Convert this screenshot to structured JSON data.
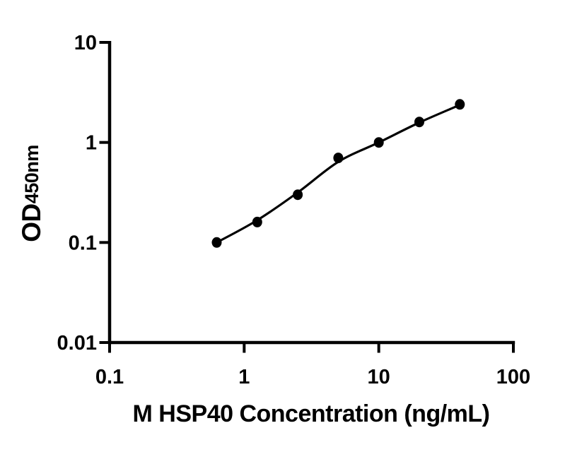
{
  "figure": {
    "background": "#ffffff",
    "ink_color": "#000000"
  },
  "chart_data": {
    "type": "scatter",
    "title": "",
    "xlabel": "M HSP40 Concentration (ng/mL)",
    "ylabel_main": "OD",
    "ylabel_sub": "450nm",
    "x_scale": "log",
    "y_scale": "log",
    "xlim": [
      0.1,
      100
    ],
    "ylim": [
      0.01,
      10
    ],
    "x_ticks": [
      0.1,
      1,
      10,
      100
    ],
    "y_ticks": [
      0.01,
      0.1,
      1,
      10
    ],
    "grid": false,
    "legend": null,
    "marker": {
      "shape": "circle",
      "color": "#000000",
      "rx": 7,
      "ry": 7.5
    },
    "points": [
      {
        "x": 0.625,
        "y": 0.1
      },
      {
        "x": 1.25,
        "y": 0.16
      },
      {
        "x": 2.5,
        "y": 0.3
      },
      {
        "x": 5,
        "y": 0.7
      },
      {
        "x": 10,
        "y": 1.0
      },
      {
        "x": 20,
        "y": 1.6
      },
      {
        "x": 40,
        "y": 2.4
      }
    ],
    "fit_curve": [
      {
        "x": 0.625,
        "y": 0.1
      },
      {
        "x": 1.25,
        "y": 0.167
      },
      {
        "x": 2.5,
        "y": 0.316
      },
      {
        "x": 5,
        "y": 0.64
      },
      {
        "x": 10,
        "y": 1.0
      },
      {
        "x": 20,
        "y": 1.58
      },
      {
        "x": 40,
        "y": 2.37
      }
    ]
  }
}
